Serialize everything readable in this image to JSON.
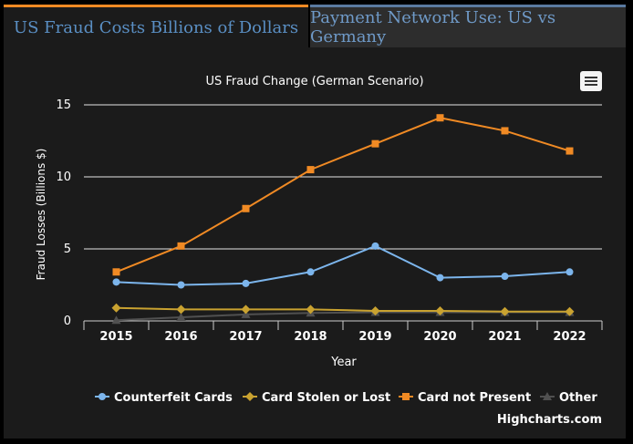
{
  "tabs": [
    {
      "label": "US Fraud Costs Billions of Dollars",
      "active": true
    },
    {
      "label": "Payment Network Use: US vs Germany",
      "active": false
    }
  ],
  "credit": "Highcharts.com",
  "menu_icon": "hamburger-menu-icon",
  "colors": {
    "accent_tab": "#f08a24",
    "counterfeit": "#7cb5ec",
    "stolen": "#c9a230",
    "cnp": "#f08a24",
    "other": "#505050"
  },
  "chart_data": {
    "type": "line",
    "title": "US Fraud Change (German Scenario)",
    "xlabel": "Year",
    "ylabel": "Fraud Losses (Billions $)",
    "categories": [
      "2015",
      "2016",
      "2017",
      "2018",
      "2019",
      "2020",
      "2021",
      "2022"
    ],
    "yticks": [
      0,
      5,
      10,
      15
    ],
    "ylim": [
      0,
      15
    ],
    "grid": true,
    "legend_position": "bottom",
    "series": [
      {
        "name": "Counterfeit Cards",
        "marker": "circle",
        "color": "#7cb5ec",
        "values": [
          2.7,
          2.5,
          2.6,
          3.4,
          5.2,
          3.0,
          3.1,
          3.4
        ]
      },
      {
        "name": "Card Stolen or Lost",
        "marker": "diamond",
        "color": "#c9a230",
        "values": [
          0.9,
          0.8,
          0.8,
          0.8,
          0.7,
          0.7,
          0.65,
          0.65
        ]
      },
      {
        "name": "Card not Present",
        "marker": "square",
        "color": "#f08a24",
        "values": [
          3.4,
          5.2,
          7.8,
          10.5,
          12.3,
          14.1,
          13.2,
          11.8
        ]
      },
      {
        "name": "Other",
        "marker": "triangle",
        "color": "#505050",
        "values": [
          0.05,
          0.25,
          0.45,
          0.55,
          0.6,
          0.6,
          0.6,
          0.6
        ]
      }
    ]
  }
}
